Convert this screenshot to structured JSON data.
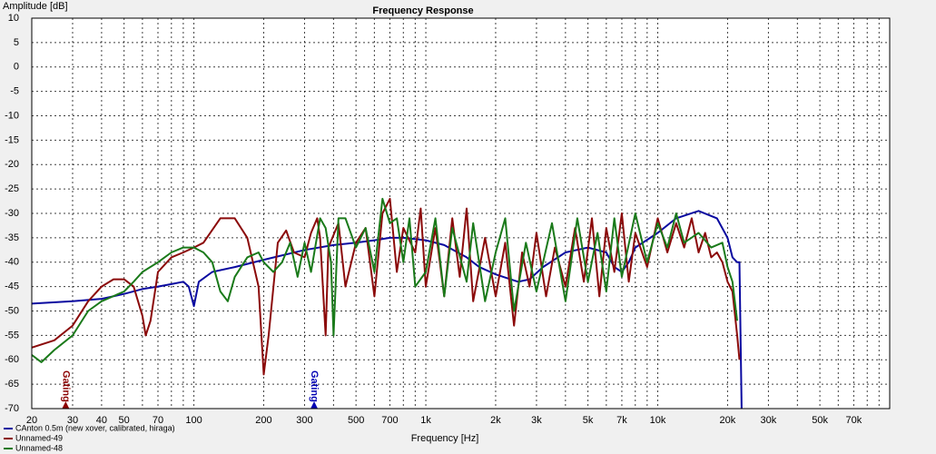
{
  "chart_data": {
    "type": "line",
    "title": "Frequency Response",
    "y_label": "Amplitude [dB]",
    "x_label": "Frequency [Hz]",
    "x_log": true,
    "grid": true,
    "xlim": [
      20,
      100000
    ],
    "ylim": [
      -70,
      10
    ],
    "yticks": [
      10,
      5,
      0,
      -5,
      -10,
      -15,
      -20,
      -25,
      -30,
      -35,
      -40,
      -45,
      -50,
      -55,
      -60,
      -65,
      -70
    ],
    "xticks": [
      20,
      30,
      40,
      50,
      70,
      100,
      200,
      300,
      500,
      700,
      {
        "value": 1000,
        "label": "1k"
      },
      {
        "value": 2000,
        "label": "2k"
      },
      {
        "value": 3000,
        "label": "3k"
      },
      {
        "value": 5000,
        "label": "5k"
      },
      {
        "value": 7000,
        "label": "7k"
      },
      {
        "value": 10000,
        "label": "10k"
      },
      {
        "value": 20000,
        "label": "20k"
      },
      {
        "value": 30000,
        "label": "30k"
      },
      {
        "value": 50000,
        "label": "50k"
      },
      {
        "value": 70000,
        "label": "70k"
      }
    ],
    "xminor": [
      60,
      80,
      90,
      400,
      600,
      800,
      900,
      4000,
      6000,
      8000,
      9000,
      40000,
      60000,
      80000,
      90000
    ],
    "annotations": [
      {
        "text": "Gating",
        "x": 28,
        "color": "#8b0000"
      },
      {
        "text": "Gating",
        "x": 330,
        "color": "#0000b4"
      }
    ],
    "series": [
      {
        "name": "CAnton 0.5m (new xover, calibrated, hiraga)",
        "color": "#0a0aa0",
        "x": [
          20,
          30,
          40,
          50,
          60,
          70,
          80,
          90,
          95,
          100,
          105,
          120,
          150,
          200,
          300,
          400,
          500,
          600,
          700,
          800,
          1000,
          1200,
          1500,
          1700,
          2000,
          2500,
          2800,
          3200,
          4000,
          5000,
          6000,
          6500,
          7000,
          7500,
          8000,
          10000,
          12000,
          15000,
          18000,
          20000,
          21000,
          22000,
          22500,
          23000
        ],
        "values": [
          -48.5,
          -48,
          -47.5,
          -46.5,
          -45.5,
          -45,
          -44.5,
          -44,
          -45,
          -49,
          -44,
          -42,
          -41,
          -39.5,
          -37.5,
          -36.5,
          -36,
          -35.5,
          -35,
          -35,
          -35.5,
          -36.5,
          -39,
          -41,
          -42.5,
          -44,
          -43.5,
          -41,
          -38,
          -37,
          -38,
          -41,
          -42,
          -40,
          -37,
          -34,
          -31,
          -29.5,
          -31,
          -35,
          -39,
          -40,
          -40,
          -70
        ]
      },
      {
        "name": "Unnamed-49",
        "color": "#8b0a0a",
        "x": [
          20,
          25,
          30,
          35,
          40,
          45,
          50,
          55,
          60,
          62,
          65,
          70,
          80,
          90,
          100,
          110,
          130,
          150,
          170,
          190,
          200,
          210,
          230,
          250,
          270,
          300,
          320,
          340,
          350,
          370,
          380,
          420,
          450,
          500,
          550,
          600,
          650,
          700,
          750,
          800,
          900,
          950,
          1000,
          1100,
          1200,
          1300,
          1400,
          1500,
          1600,
          1800,
          2000,
          2200,
          2400,
          2600,
          2800,
          3000,
          3300,
          3600,
          4000,
          4400,
          4800,
          5200,
          5600,
          6000,
          6500,
          7000,
          7500,
          8000,
          9000,
          10000,
          11000,
          12000,
          13000,
          14000,
          15000,
          16000,
          17000,
          18000,
          19000,
          20000,
          21000,
          22000,
          22500
        ],
        "values": [
          -57.5,
          -56,
          -53,
          -48,
          -45,
          -43.5,
          -43.5,
          -45,
          -51,
          -55,
          -52,
          -42,
          -39,
          -38,
          -37,
          -36,
          -31,
          -31,
          -35,
          -45,
          -63,
          -55,
          -36,
          -33.5,
          -38,
          -39,
          -34,
          -31,
          -35,
          -55,
          -37,
          -32,
          -45,
          -36,
          -33,
          -47,
          -30,
          -27,
          -42,
          -33,
          -38,
          -29,
          -45,
          -33,
          -47,
          -31,
          -43,
          -29,
          -48,
          -35,
          -47,
          -36,
          -53,
          -38,
          -45,
          -34,
          -47,
          -37,
          -45,
          -33,
          -44,
          -31,
          -47,
          -33,
          -42,
          -30,
          -44,
          -34,
          -41,
          -31,
          -38,
          -32,
          -37,
          -31,
          -38,
          -34,
          -39,
          -38,
          -40,
          -44,
          -46,
          -55,
          -60
        ]
      },
      {
        "name": "Unnamed-48",
        "color": "#1a7a1a",
        "x": [
          20,
          22,
          25,
          30,
          35,
          40,
          50,
          55,
          60,
          70,
          80,
          90,
          100,
          110,
          120,
          130,
          140,
          150,
          170,
          190,
          200,
          220,
          240,
          260,
          280,
          300,
          320,
          350,
          370,
          390,
          400,
          420,
          450,
          500,
          550,
          600,
          650,
          700,
          750,
          800,
          850,
          900,
          1000,
          1100,
          1200,
          1300,
          1500,
          1600,
          1800,
          2000,
          2200,
          2400,
          2700,
          3000,
          3500,
          4000,
          4500,
          5000,
          5500,
          6000,
          6500,
          7000,
          8000,
          9000,
          10000,
          11000,
          12000,
          13000,
          15000,
          17000,
          19000,
          20000,
          21000,
          22000
        ],
        "values": [
          -59,
          -60.5,
          -58,
          -55,
          -50,
          -48,
          -46,
          -44,
          -42,
          -40,
          -38,
          -37,
          -37,
          -38,
          -40,
          -46,
          -48,
          -43,
          -39,
          -38,
          -40,
          -42,
          -40,
          -36,
          -43,
          -36,
          -42,
          -31,
          -33,
          -40,
          -55,
          -31,
          -31,
          -37,
          -33,
          -42,
          -27,
          -32,
          -31,
          -40,
          -31,
          -45,
          -42,
          -31,
          -47,
          -33,
          -44,
          -32,
          -48,
          -38,
          -31,
          -50,
          -36,
          -46,
          -32,
          -48,
          -31,
          -44,
          -34,
          -46,
          -31,
          -43,
          -30,
          -40,
          -32,
          -37,
          -30,
          -36,
          -34,
          -37,
          -36,
          -41,
          -44,
          -52
        ]
      }
    ]
  }
}
